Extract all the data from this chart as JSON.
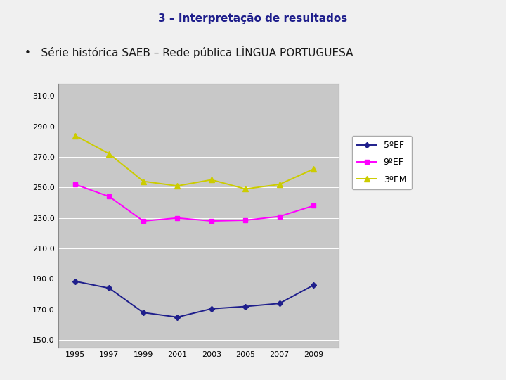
{
  "title": "3 – Interpretação de resultados",
  "subtitle": "Série histórica SAEB – Rede pública LÍNGUA PORTUGUESA",
  "years": [
    1995,
    1997,
    1999,
    2001,
    2003,
    2005,
    2007,
    2009
  ],
  "series_5EF": [
    188.5,
    184.0,
    168.0,
    165.0,
    170.5,
    172.0,
    174.0,
    186.0
  ],
  "series_9EF": [
    252.0,
    244.0,
    228.0,
    230.0,
    228.0,
    228.5,
    231.0,
    238.0
  ],
  "series_3EM": [
    284.0,
    272.0,
    254.0,
    251.0,
    255.0,
    249.0,
    252.0,
    262.0
  ],
  "color_5EF": "#1f1f8c",
  "color_9EF": "#ff00ff",
  "color_3EM": "#cccc00",
  "yticks": [
    150.0,
    170.0,
    190.0,
    210.0,
    230.0,
    250.0,
    270.0,
    290.0,
    310.0
  ],
  "ylim": [
    145,
    318
  ],
  "xlim": [
    1994.0,
    2010.5
  ],
  "plot_bg_color": "#c8c8c8",
  "outer_bg_color": "#f0f0f0",
  "title_bg_color": "#b0cede",
  "title_text_color": "#1f1f8c",
  "subtitle_text_color": "#1a1a1a",
  "legend_labels": [
    "5ºEF",
    "9ºEF",
    "3ºEM"
  ],
  "title_fontsize": 11,
  "subtitle_fontsize": 11,
  "tick_fontsize": 8,
  "legend_fontsize": 9
}
